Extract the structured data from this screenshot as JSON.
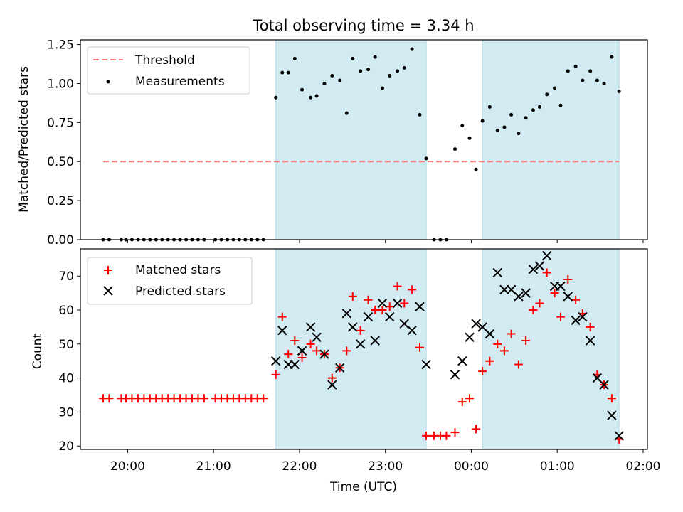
{
  "chart_data": [
    {
      "type": "scatter",
      "title": "Total observing time = 3.34 h",
      "ylabel": "Matched/Predicted stars",
      "xlabel": "",
      "ylim": [
        0,
        1.28
      ],
      "yticks": [
        0.0,
        0.25,
        0.5,
        0.75,
        1.0,
        1.25
      ],
      "ytick_labels": [
        "0.00",
        "0.25",
        "0.50",
        "0.75",
        "1.00",
        "1.25"
      ],
      "threshold": {
        "name": "Threshold",
        "value": 0.5,
        "x_range": [
          19.715,
          25.72
        ],
        "color": "#ff7b7b"
      },
      "legend_placement": "top-left",
      "series": [
        {
          "name": "Measurements",
          "color": "#000000",
          "marker": "dot",
          "points": [
            [
              19.715,
              0
            ],
            [
              19.785,
              0
            ],
            [
              19.925,
              0
            ],
            [
              19.98,
              0
            ],
            [
              20.05,
              0
            ],
            [
              20.12,
              0
            ],
            [
              20.19,
              0
            ],
            [
              20.26,
              0
            ],
            [
              20.33,
              0
            ],
            [
              20.4,
              0
            ],
            [
              20.47,
              0
            ],
            [
              20.54,
              0
            ],
            [
              20.61,
              0
            ],
            [
              20.68,
              0
            ],
            [
              20.75,
              0
            ],
            [
              20.82,
              0
            ],
            [
              20.89,
              0
            ],
            [
              21.02,
              0
            ],
            [
              21.09,
              0
            ],
            [
              21.16,
              0
            ],
            [
              21.23,
              0
            ],
            [
              21.3,
              0
            ],
            [
              21.37,
              0
            ],
            [
              21.44,
              0
            ],
            [
              21.51,
              0
            ],
            [
              21.58,
              0
            ],
            [
              21.725,
              0.91
            ],
            [
              21.8,
              1.07
            ],
            [
              21.87,
              1.07
            ],
            [
              21.945,
              1.16
            ],
            [
              22.03,
              0.96
            ],
            [
              22.13,
              0.91
            ],
            [
              22.2,
              0.92
            ],
            [
              22.29,
              1.0
            ],
            [
              22.38,
              1.05
            ],
            [
              22.47,
              1.02
            ],
            [
              22.55,
              0.81
            ],
            [
              22.62,
              1.16
            ],
            [
              22.71,
              1.08
            ],
            [
              22.8,
              1.09
            ],
            [
              22.88,
              1.17
            ],
            [
              22.965,
              0.97
            ],
            [
              23.05,
              1.05
            ],
            [
              23.14,
              1.08
            ],
            [
              23.22,
              1.1
            ],
            [
              23.31,
              1.22
            ],
            [
              23.4,
              0.8
            ],
            [
              23.475,
              0.52
            ],
            [
              23.565,
              0
            ],
            [
              23.64,
              0
            ],
            [
              23.71,
              0
            ],
            [
              23.81,
              0.58
            ],
            [
              23.895,
              0.73
            ],
            [
              23.98,
              0.65
            ],
            [
              24.055,
              0.45
            ],
            [
              24.13,
              0.76
            ],
            [
              24.215,
              0.85
            ],
            [
              24.305,
              0.7
            ],
            [
              24.385,
              0.72
            ],
            [
              24.465,
              0.8
            ],
            [
              24.55,
              0.68
            ],
            [
              24.635,
              0.78
            ],
            [
              24.72,
              0.83
            ],
            [
              24.795,
              0.85
            ],
            [
              24.88,
              0.93
            ],
            [
              24.97,
              0.97
            ],
            [
              25.04,
              0.86
            ],
            [
              25.125,
              1.08
            ],
            [
              25.215,
              1.11
            ],
            [
              25.295,
              1.02
            ],
            [
              25.385,
              1.08
            ],
            [
              25.465,
              1.02
            ],
            [
              25.545,
              1.0
            ],
            [
              25.635,
              1.17
            ],
            [
              25.72,
              0.95
            ]
          ]
        }
      ]
    },
    {
      "type": "scatter",
      "title": "",
      "xlabel": "Time (UTC)",
      "ylabel": "Count",
      "ylim": [
        19,
        78
      ],
      "yticks": [
        20,
        30,
        40,
        50,
        60,
        70
      ],
      "ytick_labels": [
        "20",
        "30",
        "40",
        "50",
        "60",
        "70"
      ],
      "legend_placement": "top-left",
      "series": [
        {
          "name": "Matched stars",
          "color": "#ff0000",
          "marker": "plus",
          "points": [
            [
              19.715,
              34
            ],
            [
              19.785,
              34
            ],
            [
              19.925,
              34
            ],
            [
              19.98,
              34
            ],
            [
              20.05,
              34
            ],
            [
              20.12,
              34
            ],
            [
              20.19,
              34
            ],
            [
              20.26,
              34
            ],
            [
              20.33,
              34
            ],
            [
              20.4,
              34
            ],
            [
              20.47,
              34
            ],
            [
              20.54,
              34
            ],
            [
              20.61,
              34
            ],
            [
              20.68,
              34
            ],
            [
              20.75,
              34
            ],
            [
              20.82,
              34
            ],
            [
              20.89,
              34
            ],
            [
              21.02,
              34
            ],
            [
              21.09,
              34
            ],
            [
              21.16,
              34
            ],
            [
              21.23,
              34
            ],
            [
              21.3,
              34
            ],
            [
              21.37,
              34
            ],
            [
              21.44,
              34
            ],
            [
              21.51,
              34
            ],
            [
              21.58,
              34
            ],
            [
              21.725,
              41
            ],
            [
              21.8,
              58
            ],
            [
              21.87,
              47
            ],
            [
              21.945,
              51
            ],
            [
              22.03,
              46
            ],
            [
              22.13,
              50
            ],
            [
              22.2,
              48
            ],
            [
              22.29,
              47
            ],
            [
              22.38,
              40
            ],
            [
              22.47,
              43
            ],
            [
              22.55,
              48
            ],
            [
              22.62,
              64
            ],
            [
              22.71,
              54
            ],
            [
              22.8,
              63
            ],
            [
              22.88,
              60
            ],
            [
              22.965,
              60
            ],
            [
              23.05,
              61
            ],
            [
              23.14,
              67
            ],
            [
              23.22,
              62
            ],
            [
              23.31,
              66
            ],
            [
              23.4,
              49
            ],
            [
              23.475,
              23
            ],
            [
              23.565,
              23
            ],
            [
              23.64,
              23
            ],
            [
              23.71,
              23
            ],
            [
              23.81,
              24
            ],
            [
              23.895,
              33
            ],
            [
              23.98,
              34
            ],
            [
              24.055,
              25
            ],
            [
              24.13,
              42
            ],
            [
              24.215,
              45
            ],
            [
              24.305,
              50
            ],
            [
              24.385,
              48
            ],
            [
              24.465,
              53
            ],
            [
              24.55,
              44
            ],
            [
              24.635,
              51
            ],
            [
              24.72,
              60
            ],
            [
              24.795,
              62
            ],
            [
              24.88,
              71
            ],
            [
              24.97,
              65
            ],
            [
              25.04,
              58
            ],
            [
              25.125,
              69
            ],
            [
              25.215,
              63
            ],
            [
              25.295,
              59
            ],
            [
              25.385,
              55
            ],
            [
              25.465,
              41
            ],
            [
              25.545,
              38
            ],
            [
              25.635,
              34
            ],
            [
              25.72,
              22
            ]
          ]
        },
        {
          "name": "Predicted stars",
          "color": "#000000",
          "marker": "x",
          "points": [
            [
              21.725,
              45
            ],
            [
              21.8,
              54
            ],
            [
              21.87,
              44
            ],
            [
              21.945,
              44
            ],
            [
              22.03,
              48
            ],
            [
              22.13,
              55
            ],
            [
              22.2,
              52
            ],
            [
              22.29,
              47
            ],
            [
              22.38,
              38
            ],
            [
              22.47,
              43
            ],
            [
              22.55,
              59
            ],
            [
              22.62,
              55
            ],
            [
              22.71,
              50
            ],
            [
              22.8,
              58
            ],
            [
              22.88,
              51
            ],
            [
              22.965,
              62
            ],
            [
              23.05,
              58
            ],
            [
              23.14,
              62
            ],
            [
              23.22,
              56
            ],
            [
              23.31,
              54
            ],
            [
              23.4,
              61
            ],
            [
              23.475,
              44
            ],
            [
              23.81,
              41
            ],
            [
              23.895,
              45
            ],
            [
              23.98,
              52
            ],
            [
              24.055,
              56
            ],
            [
              24.13,
              55
            ],
            [
              24.215,
              53
            ],
            [
              24.305,
              71
            ],
            [
              24.385,
              66
            ],
            [
              24.465,
              66
            ],
            [
              24.55,
              64
            ],
            [
              24.635,
              65
            ],
            [
              24.72,
              72
            ],
            [
              24.795,
              73
            ],
            [
              24.88,
              76
            ],
            [
              24.97,
              67
            ],
            [
              25.04,
              67
            ],
            [
              25.125,
              64
            ],
            [
              25.215,
              57
            ],
            [
              25.295,
              58
            ],
            [
              25.385,
              51
            ],
            [
              25.465,
              40
            ],
            [
              25.545,
              38
            ],
            [
              25.635,
              29
            ],
            [
              25.72,
              23
            ]
          ]
        }
      ]
    }
  ],
  "x_axis": {
    "xlim": [
      19.45,
      26.05
    ],
    "ticks": [
      20,
      21,
      22,
      23,
      24,
      25,
      26
    ],
    "tick_labels": [
      "20:00",
      "21:00",
      "22:00",
      "23:00",
      "00:00",
      "01:00",
      "02:00"
    ]
  },
  "observing_windows": {
    "color": "#add8e6",
    "ranges": [
      [
        21.725,
        23.475
      ],
      [
        24.13,
        25.72
      ]
    ]
  }
}
